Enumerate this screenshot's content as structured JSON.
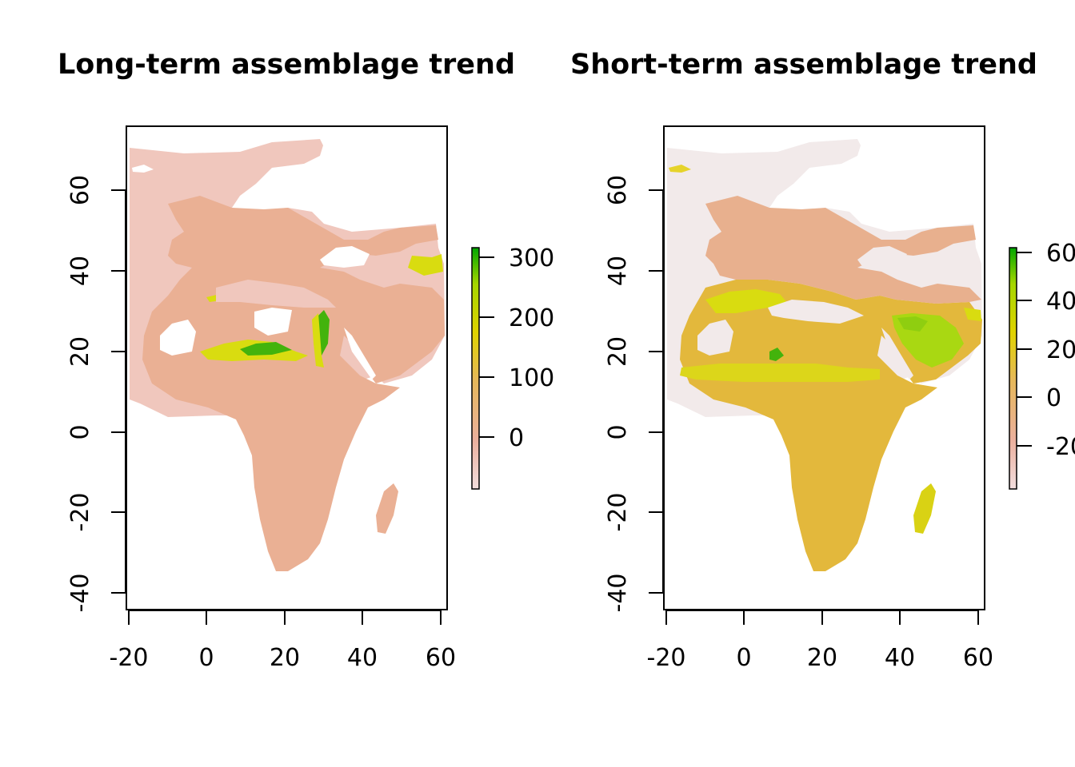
{
  "panels": [
    {
      "title": "Long-term assemblage trend",
      "x_ticks": [
        "-20",
        "0",
        "20",
        "40",
        "60"
      ],
      "y_ticks": [
        "-40",
        "-20",
        "0",
        "20",
        "40",
        "60"
      ],
      "legend_ticks": [
        "0",
        "100",
        "200",
        "300"
      ],
      "legend_range": [
        -45,
        325
      ]
    },
    {
      "title": "Short-term assemblage trend",
      "x_ticks": [
        "-20",
        "0",
        "20",
        "40",
        "60"
      ],
      "y_ticks": [
        "-40",
        "-20",
        "0",
        "20",
        "40",
        "60"
      ],
      "legend_ticks": [
        "-20",
        "0",
        "20",
        "40",
        "60"
      ],
      "legend_range": [
        -37,
        62
      ]
    }
  ],
  "colors": {
    "ramp": [
      "#f2dede",
      "#ebb09e",
      "#e6b85a",
      "#e0d300",
      "#a5d600",
      "#00a600"
    ],
    "ocean_extent": "#f0c7bd",
    "ocean_extent_short": "#f2eaea",
    "land_long": "#eab094",
    "land_short": "#e3b83c",
    "sahara_long": "#d9dc10",
    "arabia_short": "#a9d812",
    "hotspot": "#43b30c"
  }
}
